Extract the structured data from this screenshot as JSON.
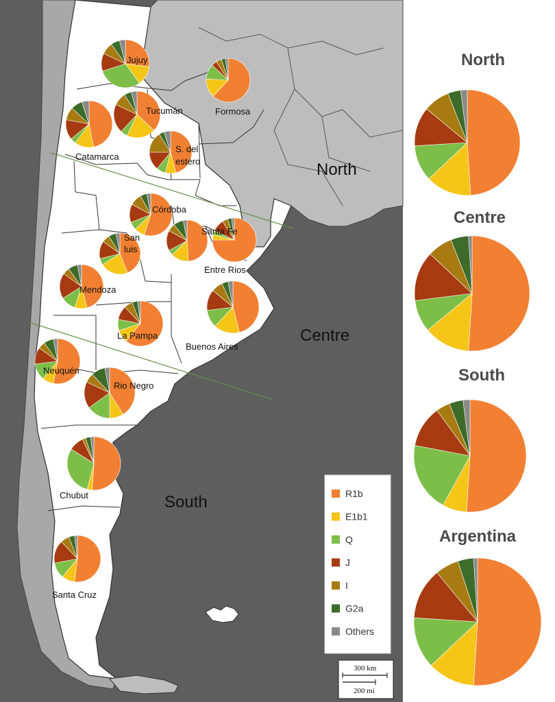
{
  "haplogroups": [
    {
      "name": "R1b",
      "color": "#F28032"
    },
    {
      "name": "E1b1",
      "color": "#F5C518"
    },
    {
      "name": "Q",
      "color": "#7DBE48"
    },
    {
      "name": "J",
      "color": "#A63A10"
    },
    {
      "name": "I",
      "color": "#A87B12"
    },
    {
      "name": "G2a",
      "color": "#3D6B2A"
    },
    {
      "name": "Others",
      "color": "#8A8A8A"
    }
  ],
  "regions": [
    {
      "name": "North"
    },
    {
      "name": "Centre"
    },
    {
      "name": "South"
    }
  ],
  "provinces": [
    {
      "name": "Jujuy",
      "values": [
        27,
        13,
        30,
        12,
        8,
        6,
        4
      ]
    },
    {
      "name": "Formosa",
      "values": [
        62,
        14,
        11,
        4,
        4,
        3,
        2
      ]
    },
    {
      "name": "Tucumán",
      "values": [
        37,
        20,
        5,
        20,
        9,
        5,
        4
      ]
    },
    {
      "name": "Catamarca",
      "values": [
        47,
        13,
        4,
        14,
        9,
        8,
        5
      ]
    },
    {
      "name": "S. del estero",
      "values": [
        46,
        8,
        7,
        14,
        16,
        4,
        5
      ]
    },
    {
      "name": "Córdoba",
      "values": [
        55,
        8,
        6,
        14,
        9,
        5,
        3
      ]
    },
    {
      "name": "Santa Fe",
      "values": [
        49,
        14,
        4,
        16,
        6,
        8,
        3
      ]
    },
    {
      "name": "Entre Rios",
      "values": [
        75,
        4,
        3,
        9,
        4,
        3,
        2
      ]
    },
    {
      "name": "San luis",
      "values": [
        44,
        22,
        5,
        14,
        6,
        6,
        3
      ]
    },
    {
      "name": "Mendoza",
      "values": [
        46,
        9,
        11,
        19,
        5,
        7,
        3
      ]
    },
    {
      "name": "La Pampa",
      "values": [
        61,
        9,
        8,
        10,
        6,
        4,
        2
      ]
    },
    {
      "name": "Buenos Aires",
      "values": [
        46,
        16,
        11,
        13,
        7,
        4,
        3
      ]
    },
    {
      "name": "Neuquén",
      "values": [
        53,
        8,
        12,
        12,
        5,
        7,
        3
      ]
    },
    {
      "name": "Rio Negro",
      "values": [
        41,
        9,
        15,
        17,
        6,
        9,
        3
      ]
    },
    {
      "name": "Chubut",
      "values": [
        51,
        3,
        30,
        9,
        2,
        3,
        2
      ]
    },
    {
      "name": "Santa Cruz",
      "values": [
        52,
        9,
        11,
        16,
        6,
        4,
        2
      ]
    }
  ],
  "region_charts": [
    {
      "title": "North",
      "values": [
        49,
        14,
        11,
        12,
        8,
        4,
        2
      ]
    },
    {
      "title": "Centre",
      "values": [
        51,
        13,
        9,
        14,
        7,
        5,
        1
      ]
    },
    {
      "title": "South",
      "values": [
        51,
        7,
        20,
        12,
        4,
        4,
        2
      ]
    },
    {
      "title": "Argentina",
      "values": [
        51,
        12,
        13,
        13,
        6,
        4,
        1
      ]
    }
  ],
  "scale": {
    "km": "300 km",
    "mi": "200 mi"
  }
}
